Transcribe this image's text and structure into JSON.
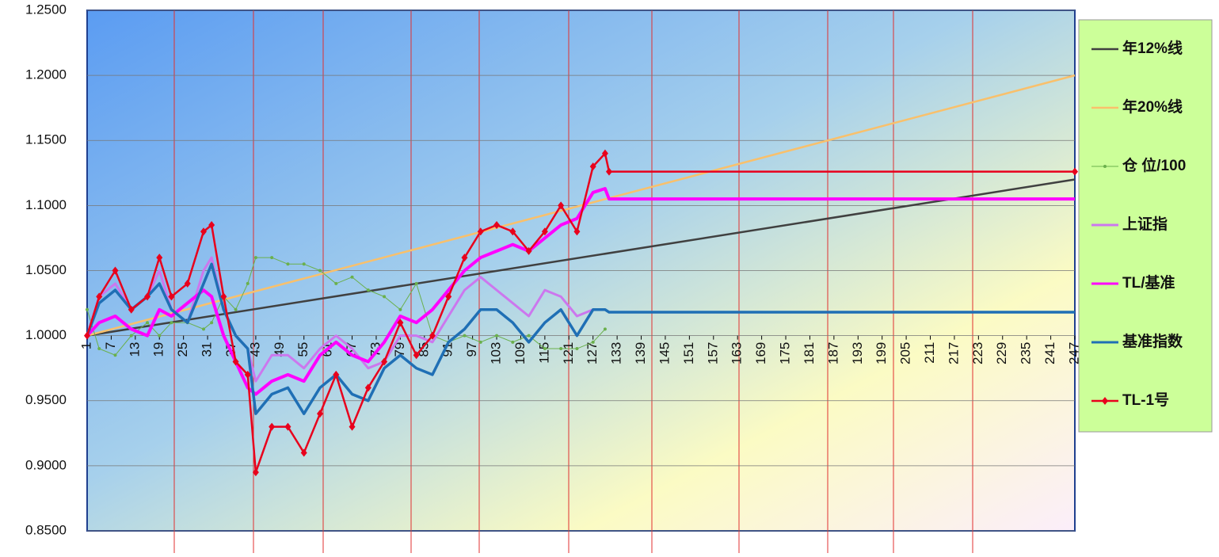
{
  "chart_data": {
    "type": "line",
    "xlim": [
      1,
      247
    ],
    "xticks": [
      1,
      7,
      13,
      19,
      25,
      31,
      37,
      43,
      49,
      55,
      61,
      67,
      73,
      79,
      85,
      91,
      97,
      103,
      109,
      115,
      121,
      127,
      133,
      139,
      145,
      151,
      157,
      163,
      169,
      175,
      181,
      187,
      193,
      199,
      205,
      211,
      217,
      223,
      229,
      235,
      241,
      247
    ],
    "ylim": [
      0.85,
      1.25
    ],
    "yticks": [
      {
        "value": 0.85,
        "label": "0.8500"
      },
      {
        "value": 0.9,
        "label": "0.9000"
      },
      {
        "value": 0.95,
        "label": "0.9500"
      },
      {
        "value": 1.0,
        "label": "1.0000"
      },
      {
        "value": 1.05,
        "label": "1.0500"
      },
      {
        "value": 1.1,
        "label": "1.1000"
      },
      {
        "value": 1.15,
        "label": "1.1500"
      },
      {
        "value": 1.2,
        "label": "1.2000"
      },
      {
        "value": 1.25,
        "label": "1.2500"
      }
    ],
    "grid": true,
    "legend": "right",
    "series": [
      {
        "name": "年12%线",
        "color": "#404040",
        "width": 2.5,
        "marker": "none",
        "x": [
          1,
          247
        ],
        "values": [
          1.0,
          1.12
        ]
      },
      {
        "name": "年20%线",
        "color": "#f9c06b",
        "width": 2.5,
        "marker": "none",
        "x": [
          1,
          247
        ],
        "values": [
          1.0,
          1.2
        ]
      },
      {
        "name": "仓 位/100",
        "color": "#6ab04c",
        "width": 1,
        "marker": "dot",
        "x": [
          1,
          4,
          8,
          12,
          16,
          19,
          22,
          26,
          30,
          32,
          35,
          38,
          41,
          43,
          47,
          51,
          55,
          59,
          63,
          67,
          71,
          75,
          79,
          83,
          87,
          91,
          95,
          99,
          103,
          107,
          111,
          115,
          119,
          123,
          127,
          130
        ],
        "values": [
          1.02,
          0.99,
          0.985,
          1.0,
          1.01,
          1.0,
          1.01,
          1.01,
          1.005,
          1.01,
          1.03,
          1.02,
          1.04,
          1.06,
          1.06,
          1.055,
          1.055,
          1.05,
          1.04,
          1.045,
          1.035,
          1.03,
          1.02,
          1.04,
          1.0,
          0.995,
          1.0,
          0.995,
          1.0,
          0.995,
          1.0,
          0.99,
          0.99,
          0.99,
          0.995,
          1.005
        ]
      },
      {
        "name": "上证指",
        "color": "#cc77ee",
        "width": 3,
        "marker": "none",
        "x": [
          1,
          4,
          8,
          12,
          16,
          19,
          22,
          26,
          30,
          32,
          35,
          38,
          41,
          43,
          47,
          51,
          55,
          59,
          63,
          67,
          71,
          75,
          79,
          83,
          87,
          91,
          95,
          99,
          103,
          107,
          111,
          115,
          119,
          123,
          127,
          130
        ],
        "values": [
          1.0,
          1.03,
          1.04,
          1.02,
          1.03,
          1.05,
          1.02,
          1.01,
          1.05,
          1.06,
          1.02,
          1.0,
          0.99,
          0.965,
          0.985,
          0.985,
          0.975,
          0.99,
          1.0,
          0.99,
          0.975,
          0.98,
          1.0,
          1.0,
          0.995,
          1.015,
          1.035,
          1.045,
          1.035,
          1.025,
          1.015,
          1.035,
          1.03,
          1.015,
          1.02,
          1.02
        ]
      },
      {
        "name": "TL/基准",
        "color": "#ff00ff",
        "width": 4,
        "marker": "none",
        "x": [
          1,
          4,
          8,
          12,
          16,
          19,
          22,
          26,
          30,
          32,
          35,
          38,
          41,
          43,
          47,
          51,
          55,
          59,
          63,
          67,
          71,
          75,
          79,
          83,
          87,
          91,
          95,
          99,
          103,
          107,
          111,
          115,
          119,
          123,
          127,
          130,
          131,
          247
        ],
        "values": [
          1.0,
          1.01,
          1.015,
          1.005,
          1.0,
          1.02,
          1.015,
          1.025,
          1.035,
          1.03,
          1.0,
          0.98,
          0.96,
          0.955,
          0.965,
          0.97,
          0.965,
          0.985,
          0.995,
          0.985,
          0.98,
          0.995,
          1.015,
          1.01,
          1.02,
          1.035,
          1.05,
          1.06,
          1.065,
          1.07,
          1.065,
          1.075,
          1.085,
          1.09,
          1.11,
          1.113,
          1.105,
          1.105
        ]
      },
      {
        "name": "基准指数",
        "color": "#1f6fb5",
        "width": 3.5,
        "marker": "none",
        "x": [
          1,
          4,
          8,
          12,
          16,
          19,
          22,
          26,
          30,
          32,
          35,
          38,
          41,
          43,
          47,
          51,
          55,
          59,
          63,
          67,
          71,
          75,
          79,
          83,
          87,
          91,
          95,
          99,
          103,
          107,
          111,
          115,
          119,
          123,
          127,
          130,
          131,
          247
        ],
        "values": [
          1.0,
          1.025,
          1.035,
          1.02,
          1.03,
          1.04,
          1.02,
          1.01,
          1.04,
          1.055,
          1.02,
          1.0,
          0.99,
          0.94,
          0.955,
          0.96,
          0.94,
          0.96,
          0.97,
          0.955,
          0.95,
          0.975,
          0.985,
          0.975,
          0.97,
          0.995,
          1.005,
          1.02,
          1.02,
          1.01,
          0.995,
          1.01,
          1.02,
          1.0,
          1.02,
          1.02,
          1.018,
          1.018
        ]
      },
      {
        "name": "TL-1号",
        "color": "#e8001c",
        "width": 2.5,
        "marker": "diamond",
        "x": [
          1,
          4,
          8,
          12,
          16,
          19,
          22,
          26,
          30,
          32,
          35,
          38,
          41,
          43,
          47,
          51,
          55,
          59,
          63,
          67,
          71,
          75,
          79,
          83,
          87,
          91,
          95,
          99,
          103,
          107,
          111,
          115,
          119,
          123,
          127,
          130,
          131,
          247
        ],
        "values": [
          1.0,
          1.03,
          1.05,
          1.02,
          1.03,
          1.06,
          1.03,
          1.04,
          1.08,
          1.085,
          1.03,
          0.98,
          0.97,
          0.895,
          0.93,
          0.93,
          0.91,
          0.94,
          0.97,
          0.93,
          0.96,
          0.98,
          1.01,
          0.985,
          1.0,
          1.03,
          1.06,
          1.08,
          1.085,
          1.08,
          1.065,
          1.08,
          1.1,
          1.08,
          1.13,
          1.14,
          1.126,
          1.126
        ]
      }
    ]
  }
}
